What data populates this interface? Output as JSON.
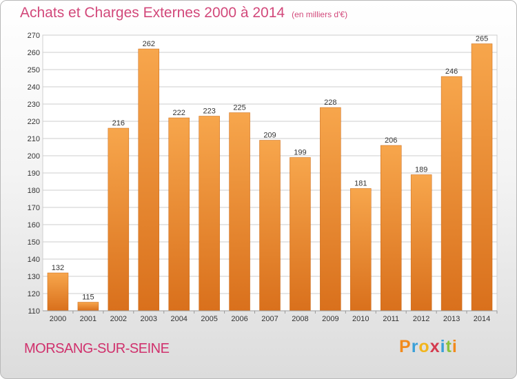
{
  "header": {
    "title": "Achats et Charges Externes 2000 à 2014",
    "unit": "(en milliers d'€)"
  },
  "footer": {
    "city": "MORSANG-SUR-SEINE",
    "logo": {
      "p": "P",
      "r": "r",
      "o": "o",
      "x": "x",
      "i1": "i",
      "t": "t",
      "i2": "i"
    }
  },
  "colors": {
    "bar_light": "#f7a64c",
    "bar_dark": "#d9701c",
    "grid": "#cccccc",
    "title": "#d2487a"
  },
  "chart_data": {
    "type": "bar",
    "title": "Achats et Charges Externes 2000 à 2014",
    "subtitle": "(en milliers d'€)",
    "xlabel": "",
    "ylabel": "",
    "categories": [
      "2000",
      "2001",
      "2002",
      "2003",
      "2004",
      "2005",
      "2006",
      "2007",
      "2008",
      "2009",
      "2010",
      "2011",
      "2012",
      "2013",
      "2014"
    ],
    "values": [
      132,
      115,
      216,
      262,
      222,
      223,
      225,
      209,
      199,
      228,
      181,
      206,
      189,
      246,
      265
    ],
    "ylim": [
      110,
      270
    ],
    "yticks": [
      110,
      120,
      130,
      140,
      150,
      160,
      170,
      180,
      190,
      200,
      210,
      220,
      230,
      240,
      250,
      260,
      270
    ],
    "grid": true,
    "legend": "none"
  }
}
